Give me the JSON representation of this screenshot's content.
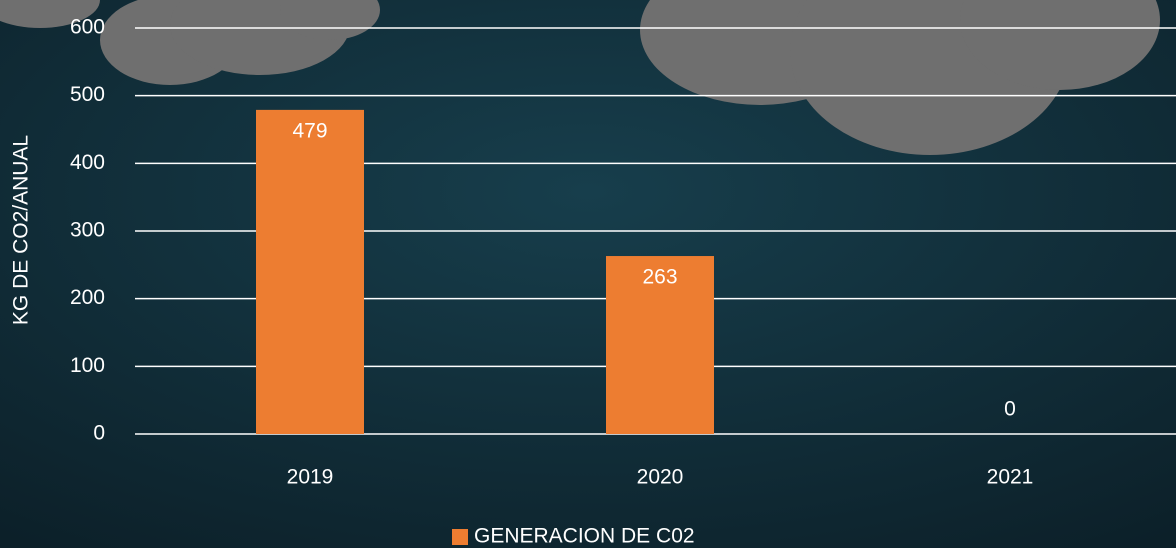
{
  "chart_data": {
    "type": "bar",
    "y_label": "KG DE CO2/ANUAL",
    "categories": [
      "2019",
      "2020",
      "2021"
    ],
    "series": [
      {
        "name": "GENERACION DE C02",
        "color": "#ed7d31",
        "values": [
          479,
          263,
          0
        ]
      }
    ],
    "ylim": [
      0,
      600
    ],
    "yticks": [
      0,
      100,
      200,
      300,
      400,
      500,
      600
    ],
    "grid": true,
    "legend": "bottom"
  }
}
